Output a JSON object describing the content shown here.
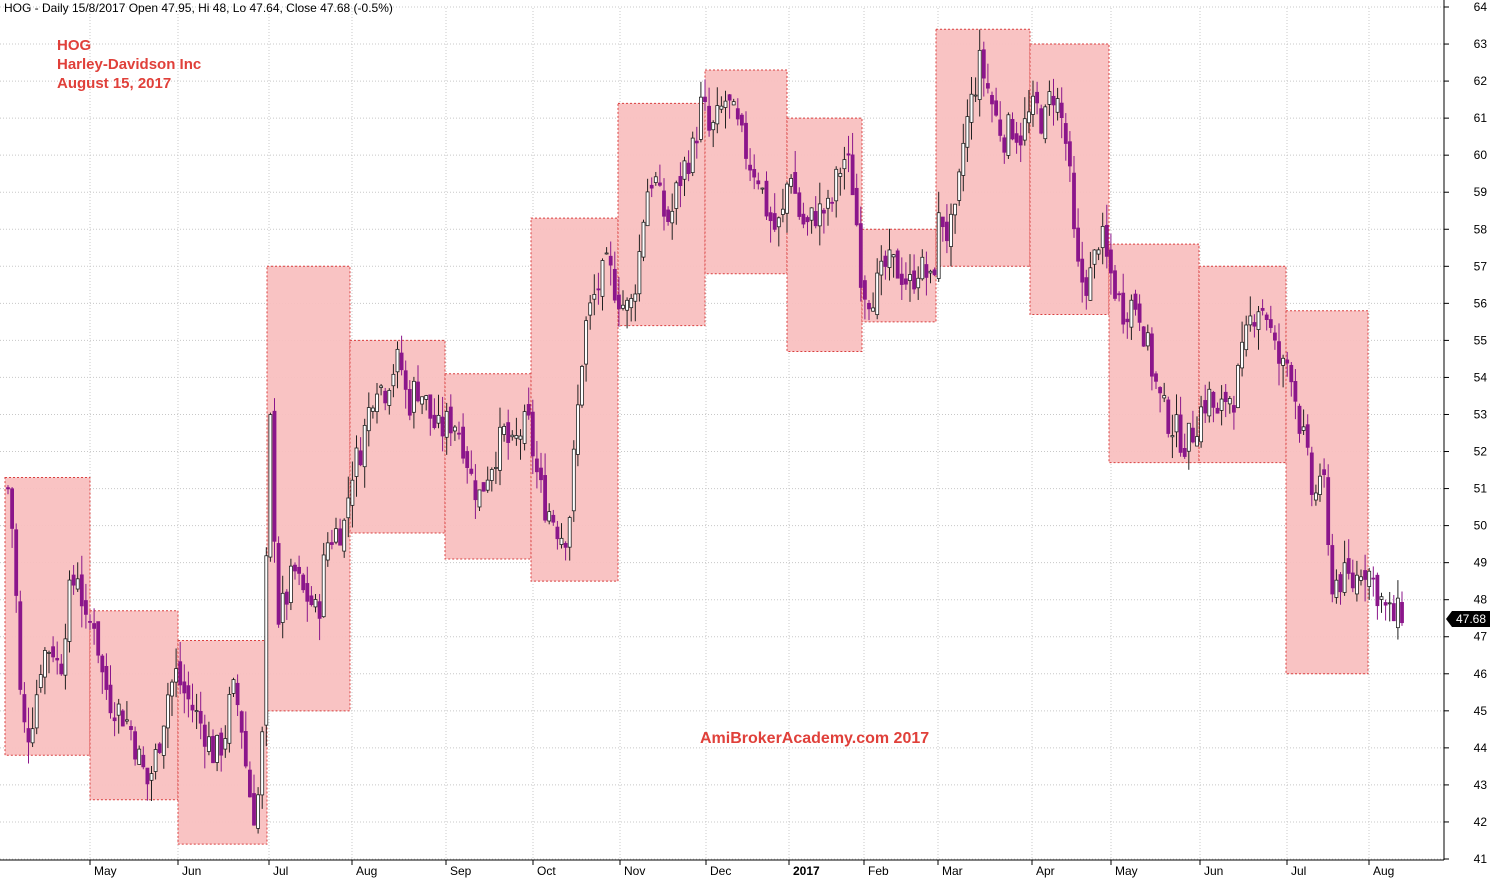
{
  "header": {
    "text": "HOG - Daily 15/8/2017 Open 47.95, Hi 48, Lo 47.64, Close 47.68 (-0.5%)"
  },
  "title": {
    "ticker": "HOG",
    "name": "Harley-Davidson Inc",
    "date": "August 15, 2017"
  },
  "watermark": "AmiBrokerAcademy.com  2017",
  "last_price_label": "47.68",
  "colors": {
    "box_fill": "#f9c0c0",
    "box_border": "#d94040",
    "down_candle": "#8b168b",
    "up_candle": "#ffffff",
    "grid": "#c8c8c8",
    "title_red": "#e0403a"
  },
  "chart_data": {
    "type": "candlestick",
    "ylim": [
      41,
      64
    ],
    "y_ticks": [
      41,
      42,
      43,
      44,
      45,
      46,
      47,
      48,
      49,
      50,
      51,
      52,
      53,
      54,
      55,
      56,
      57,
      58,
      59,
      60,
      61,
      62,
      63,
      64
    ],
    "x_ticks": [
      {
        "label": "May",
        "day": 90
      },
      {
        "label": "Jun",
        "day": 178
      },
      {
        "label": "Jul",
        "day": 269
      },
      {
        "label": "Aug",
        "day": 352
      },
      {
        "label": "Sep",
        "day": 446
      },
      {
        "label": "Oct",
        "day": 533
      },
      {
        "label": "Nov",
        "day": 620
      },
      {
        "label": "Dec",
        "day": 706
      },
      {
        "label": "2017",
        "day": 789,
        "bold": true
      },
      {
        "label": "Feb",
        "day": 864
      },
      {
        "label": "Mar",
        "day": 938
      },
      {
        "label": "Apr",
        "day": 1032
      },
      {
        "label": "May",
        "day": 1111
      },
      {
        "label": "Jun",
        "day": 1200
      },
      {
        "label": "Jul",
        "day": 1287
      },
      {
        "label": "Aug",
        "day": 1369
      }
    ],
    "x_range": [
      0,
      1444
    ],
    "monthly_boxes": [
      {
        "x0": 5,
        "x1": 90,
        "high": 51.3,
        "low": 43.8
      },
      {
        "x0": 90,
        "x1": 178,
        "high": 47.7,
        "low": 42.6
      },
      {
        "x0": 178,
        "x1": 267,
        "high": 46.9,
        "low": 41.4
      },
      {
        "x0": 267,
        "x1": 350,
        "high": 57.0,
        "low": 45.0
      },
      {
        "x0": 350,
        "x1": 445,
        "high": 55.0,
        "low": 49.8
      },
      {
        "x0": 445,
        "x1": 531,
        "high": 54.1,
        "low": 49.1
      },
      {
        "x0": 531,
        "x1": 618,
        "high": 58.3,
        "low": 48.5
      },
      {
        "x0": 618,
        "x1": 705,
        "high": 61.4,
        "low": 55.4
      },
      {
        "x0": 705,
        "x1": 787,
        "high": 62.3,
        "low": 56.8
      },
      {
        "x0": 787,
        "x1": 862,
        "high": 61.0,
        "low": 54.7
      },
      {
        "x0": 862,
        "x1": 936,
        "high": 58.0,
        "low": 55.5
      },
      {
        "x0": 936,
        "x1": 1030,
        "high": 63.4,
        "low": 57.0
      },
      {
        "x0": 1030,
        "x1": 1109,
        "high": 63.0,
        "low": 55.7
      },
      {
        "x0": 1109,
        "x1": 1199,
        "high": 57.6,
        "low": 51.7
      },
      {
        "x0": 1199,
        "x1": 1286,
        "high": 57.0,
        "low": 51.7
      },
      {
        "x0": 1286,
        "x1": 1368,
        "high": 55.8,
        "low": 46.0
      }
    ],
    "monthly_path": [
      [
        8,
        51.0
      ],
      [
        14,
        49.5
      ],
      [
        20,
        45.5
      ],
      [
        26,
        44.2
      ],
      [
        34,
        45.0
      ],
      [
        42,
        46.5
      ],
      [
        52,
        46.8
      ],
      [
        60,
        46.0
      ],
      [
        68,
        48.0
      ],
      [
        78,
        48.8
      ],
      [
        86,
        47.2
      ],
      [
        94,
        47.5
      ],
      [
        102,
        46.0
      ],
      [
        110,
        45.3
      ],
      [
        120,
        45.0
      ],
      [
        130,
        44.6
      ],
      [
        138,
        43.8
      ],
      [
        148,
        43.0
      ],
      [
        158,
        44.0
      ],
      [
        168,
        45.5
      ],
      [
        176,
        46.0
      ],
      [
        184,
        45.5
      ],
      [
        194,
        45.0
      ],
      [
        204,
        44.5
      ],
      [
        214,
        43.8
      ],
      [
        224,
        44.2
      ],
      [
        232,
        45.6
      ],
      [
        240,
        45.0
      ],
      [
        248,
        43.0
      ],
      [
        256,
        42.0
      ],
      [
        262,
        44.0
      ],
      [
        270,
        53.0
      ],
      [
        278,
        47.5
      ],
      [
        286,
        48.0
      ],
      [
        294,
        48.8
      ],
      [
        302,
        48.2
      ],
      [
        310,
        48.0
      ],
      [
        318,
        47.5
      ],
      [
        326,
        49.5
      ],
      [
        334,
        49.8
      ],
      [
        344,
        50.0
      ],
      [
        352,
        51.5
      ],
      [
        360,
        52.0
      ],
      [
        368,
        53.0
      ],
      [
        376,
        54.0
      ],
      [
        384,
        53.6
      ],
      [
        392,
        54.2
      ],
      [
        400,
        54.5
      ],
      [
        408,
        53.2
      ],
      [
        416,
        53.8
      ],
      [
        424,
        53.5
      ],
      [
        432,
        52.8
      ],
      [
        440,
        52.5
      ],
      [
        448,
        52.8
      ],
      [
        456,
        52.8
      ],
      [
        464,
        52.2
      ],
      [
        472,
        51.2
      ],
      [
        480,
        50.8
      ],
      [
        488,
        51.5
      ],
      [
        496,
        52.0
      ],
      [
        504,
        52.5
      ],
      [
        512,
        52.0
      ],
      [
        520,
        52.5
      ],
      [
        528,
        52.8
      ],
      [
        536,
        51.5
      ],
      [
        544,
        50.6
      ],
      [
        552,
        50.3
      ],
      [
        560,
        49.8
      ],
      [
        568,
        49.8
      ],
      [
        576,
        52.5
      ],
      [
        584,
        55.2
      ],
      [
        592,
        56.0
      ],
      [
        600,
        56.6
      ],
      [
        608,
        57.0
      ],
      [
        614,
        56.5
      ],
      [
        622,
        56.0
      ],
      [
        630,
        55.8
      ],
      [
        638,
        57.0
      ],
      [
        646,
        59.0
      ],
      [
        654,
        59.5
      ],
      [
        662,
        58.5
      ],
      [
        670,
        58.2
      ],
      [
        678,
        59.2
      ],
      [
        686,
        59.8
      ],
      [
        694,
        60.2
      ],
      [
        702,
        61.5
      ],
      [
        710,
        60.5
      ],
      [
        718,
        61.0
      ],
      [
        726,
        61.5
      ],
      [
        734,
        61.0
      ],
      [
        742,
        60.4
      ],
      [
        750,
        59.8
      ],
      [
        758,
        59.5
      ],
      [
        766,
        58.6
      ],
      [
        774,
        58.0
      ],
      [
        782,
        58.2
      ],
      [
        790,
        59.8
      ],
      [
        798,
        58.5
      ],
      [
        806,
        58.0
      ],
      [
        814,
        58.4
      ],
      [
        822,
        58.5
      ],
      [
        830,
        58.5
      ],
      [
        838,
        59.5
      ],
      [
        846,
        60.0
      ],
      [
        854,
        59.0
      ],
      [
        862,
        56.5
      ],
      [
        870,
        56.2
      ],
      [
        878,
        56.5
      ],
      [
        886,
        57.0
      ],
      [
        894,
        57.0
      ],
      [
        902,
        56.8
      ],
      [
        910,
        56.5
      ],
      [
        918,
        57.0
      ],
      [
        926,
        56.8
      ],
      [
        932,
        56.4
      ],
      [
        940,
        58.5
      ],
      [
        948,
        57.8
      ],
      [
        956,
        58.3
      ],
      [
        964,
        60.5
      ],
      [
        972,
        61.5
      ],
      [
        980,
        62.5
      ],
      [
        988,
        61.8
      ],
      [
        996,
        61.0
      ],
      [
        1004,
        60.5
      ],
      [
        1012,
        60.8
      ],
      [
        1020,
        60.5
      ],
      [
        1028,
        61.0
      ],
      [
        1036,
        61.3
      ],
      [
        1044,
        60.8
      ],
      [
        1052,
        61.8
      ],
      [
        1060,
        61.2
      ],
      [
        1068,
        60.0
      ],
      [
        1076,
        57.0
      ],
      [
        1084,
        56.5
      ],
      [
        1092,
        56.8
      ],
      [
        1100,
        58.0
      ],
      [
        1106,
        57.2
      ],
      [
        1114,
        56.5
      ],
      [
        1122,
        55.8
      ],
      [
        1130,
        56.0
      ],
      [
        1138,
        56.0
      ],
      [
        1146,
        55.0
      ],
      [
        1154,
        54.0
      ],
      [
        1162,
        53.2
      ],
      [
        1170,
        52.8
      ],
      [
        1178,
        52.5
      ],
      [
        1186,
        52.2
      ],
      [
        1194,
        52.6
      ],
      [
        1202,
        53.2
      ],
      [
        1210,
        53.5
      ],
      [
        1218,
        52.8
      ],
      [
        1226,
        53.5
      ],
      [
        1234,
        53.5
      ],
      [
        1242,
        54.5
      ],
      [
        1250,
        55.5
      ],
      [
        1258,
        56.0
      ],
      [
        1266,
        55.8
      ],
      [
        1274,
        54.8
      ],
      [
        1282,
        54.2
      ],
      [
        1290,
        54.5
      ],
      [
        1298,
        53.0
      ],
      [
        1306,
        52.0
      ],
      [
        1314,
        50.5
      ],
      [
        1322,
        51.8
      ],
      [
        1330,
        48.5
      ],
      [
        1338,
        48.5
      ],
      [
        1346,
        48.6
      ],
      [
        1354,
        48.4
      ],
      [
        1362,
        49.0
      ],
      [
        1370,
        48.7
      ],
      [
        1378,
        48.2
      ],
      [
        1386,
        47.7
      ],
      [
        1394,
        47.5
      ],
      [
        1402,
        47.7
      ]
    ]
  }
}
